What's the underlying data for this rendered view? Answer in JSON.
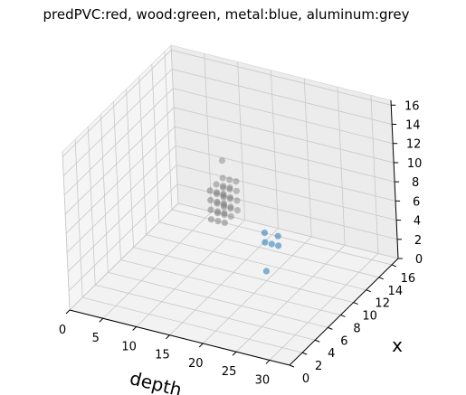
{
  "chart_data": {
    "type": "scatter",
    "projection": "3d",
    "title": "predPVC:red, wood:green, metal:blue, aluminum:grey",
    "xlabel": "depth",
    "ylabel": "x",
    "zlabel": "",
    "xlim": [
      0,
      33
    ],
    "ylim": [
      0,
      17
    ],
    "zlim": [
      0,
      16.5
    ],
    "x_ticks": [
      "0",
      "5",
      "10",
      "15",
      "20",
      "25",
      "30"
    ],
    "y_ticks": [
      "0",
      "2",
      "4",
      "6",
      "8",
      "10",
      "12",
      "14",
      "16"
    ],
    "z_ticks": [
      "0",
      "2",
      "4",
      "6",
      "8",
      "10",
      "12",
      "14",
      "16"
    ],
    "grid": true,
    "legend": "none",
    "colors": {
      "metal": "#1f77b4",
      "aluminum": "#7f7f7f",
      "pane": "#f2f2f2",
      "grid": "#c8c8c8"
    },
    "series": [
      {
        "name": "aluminum",
        "color": "#7f7f7f",
        "points": [
          {
            "x": 12,
            "y": 12,
            "z": 8
          },
          {
            "x": 13,
            "y": 12,
            "z": 8
          },
          {
            "x": 14,
            "y": 12,
            "z": 8
          },
          {
            "x": 12,
            "y": 12,
            "z": 7
          },
          {
            "x": 13,
            "y": 12,
            "z": 7
          },
          {
            "x": 14,
            "y": 12,
            "z": 7
          },
          {
            "x": 12,
            "y": 12,
            "z": 6
          },
          {
            "x": 13,
            "y": 12,
            "z": 6
          },
          {
            "x": 14,
            "y": 12,
            "z": 6
          },
          {
            "x": 12,
            "y": 12,
            "z": 5
          },
          {
            "x": 13,
            "y": 12,
            "z": 5
          },
          {
            "x": 14,
            "y": 12,
            "z": 5
          },
          {
            "x": 12,
            "y": 11,
            "z": 8
          },
          {
            "x": 13,
            "y": 11,
            "z": 8
          },
          {
            "x": 14,
            "y": 11,
            "z": 8
          },
          {
            "x": 12,
            "y": 11,
            "z": 7
          },
          {
            "x": 13,
            "y": 11,
            "z": 7
          },
          {
            "x": 14,
            "y": 11,
            "z": 7
          },
          {
            "x": 12,
            "y": 11,
            "z": 6
          },
          {
            "x": 13,
            "y": 11,
            "z": 6
          },
          {
            "x": 14,
            "y": 11,
            "z": 6
          },
          {
            "x": 12,
            "y": 11,
            "z": 5
          },
          {
            "x": 13,
            "y": 11,
            "z": 5
          },
          {
            "x": 14,
            "y": 11,
            "z": 5
          },
          {
            "x": 12,
            "y": 10,
            "z": 8
          },
          {
            "x": 13,
            "y": 10,
            "z": 8
          },
          {
            "x": 14,
            "y": 10,
            "z": 8
          },
          {
            "x": 12,
            "y": 10,
            "z": 7
          },
          {
            "x": 13,
            "y": 10,
            "z": 7
          },
          {
            "x": 14,
            "y": 10,
            "z": 7
          },
          {
            "x": 12,
            "y": 10,
            "z": 6
          },
          {
            "x": 13,
            "y": 10,
            "z": 6
          },
          {
            "x": 14,
            "y": 10,
            "z": 6
          },
          {
            "x": 12,
            "y": 10,
            "z": 5
          },
          {
            "x": 13,
            "y": 10,
            "z": 5
          },
          {
            "x": 14,
            "y": 10,
            "z": 5
          },
          {
            "x": 11,
            "y": 13,
            "z": 9
          }
        ]
      },
      {
        "name": "metal",
        "color": "#1f77b4",
        "points": [
          {
            "x": 20,
            "y": 10,
            "z": 5
          },
          {
            "x": 20,
            "y": 10,
            "z": 4
          },
          {
            "x": 21,
            "y": 10,
            "z": 4
          },
          {
            "x": 22,
            "y": 10,
            "z": 5
          },
          {
            "x": 22,
            "y": 10,
            "z": 4
          },
          {
            "x": 20,
            "y": 10,
            "z": 1
          }
        ]
      }
    ]
  }
}
